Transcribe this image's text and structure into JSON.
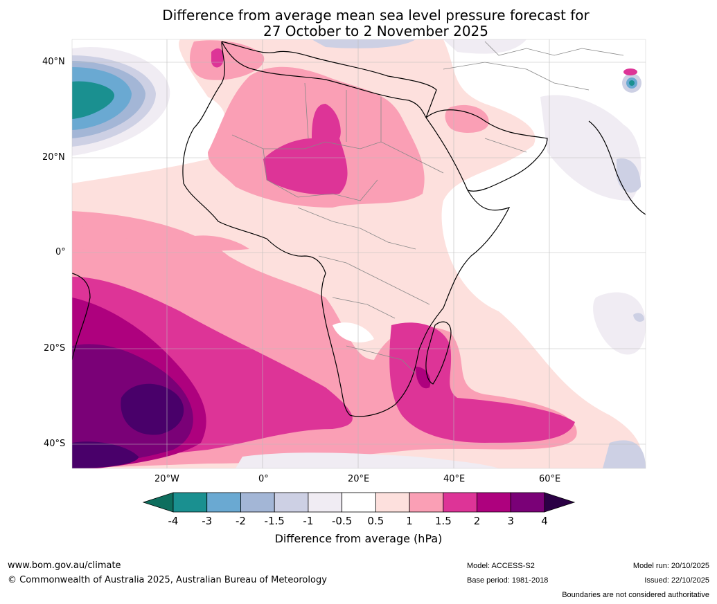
{
  "title_line1": "Difference from average mean sea level pressure forecast for",
  "title_line2": "27 October to 2 November 2025",
  "lat_labels": [
    "40°N",
    "20°N",
    "0°",
    "20°S",
    "40°S"
  ],
  "lon_labels": [
    "20°W",
    "0°",
    "20°E",
    "40°E",
    "60°E"
  ],
  "colorbar": {
    "ticks": [
      "-4",
      "-3",
      "-2",
      "-1.5",
      "-1",
      "-0.5",
      "0.5",
      "1",
      "1.5",
      "2",
      "3",
      "4"
    ],
    "colors": [
      "#1a9090",
      "#6aa9d2",
      "#a3b6d6",
      "#cdd0e4",
      "#f0ecf3",
      "#ffffff",
      "#fde0dd",
      "#fa9fb5",
      "#dd3497",
      "#ae017e",
      "#7a0177",
      "#49006a"
    ],
    "under_color": "#0e6e5e",
    "over_color": "#2b0045",
    "label": "Difference from average (hPa)"
  },
  "footer": {
    "url": "www.bom.gov.au/climate",
    "copyright": "© Commonwealth of Australia 2025, Australian Bureau of Meteorology",
    "model": "Model: ACCESS-S2",
    "base_period": "Base period: 1981-2018",
    "model_run": "Model run: 20/10/2025",
    "issued": "Issued: 22/10/2025",
    "disclaimer": "Boundaries are not considered authoritative"
  }
}
